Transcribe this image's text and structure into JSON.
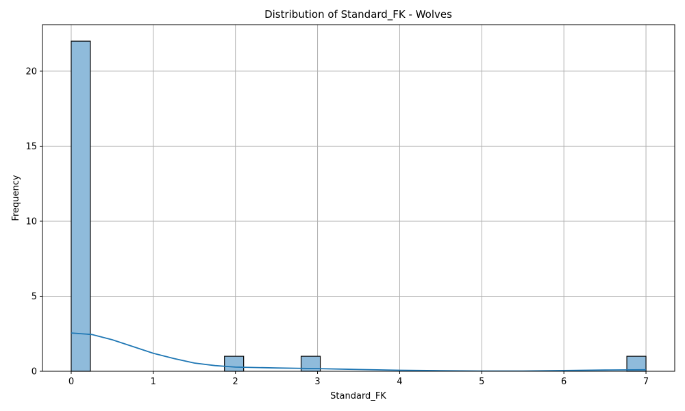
{
  "chart_data": {
    "type": "histogram",
    "title": "Distribution of Standard_FK - Wolves",
    "xlabel": "Standard_FK",
    "ylabel": "Frequency",
    "xlim": [
      -0.35,
      7.35
    ],
    "ylim": [
      0,
      23.1
    ],
    "xticks": [
      0,
      1,
      2,
      3,
      4,
      5,
      6,
      7
    ],
    "yticks": [
      0,
      5,
      10,
      15,
      20
    ],
    "grid": true,
    "bin_width": 0.2333,
    "bars": [
      {
        "x0": 0.0,
        "x1": 0.2333,
        "count": 22
      },
      {
        "x0": 1.8667,
        "x1": 2.1,
        "count": 1
      },
      {
        "x0": 2.8,
        "x1": 3.0333,
        "count": 1
      },
      {
        "x0": 6.7667,
        "x1": 7.0,
        "count": 1
      }
    ],
    "kde": {
      "x": [
        0,
        0.25,
        0.5,
        0.75,
        1.0,
        1.25,
        1.5,
        1.75,
        2.0,
        2.5,
        3.0,
        3.5,
        4.0,
        4.5,
        5.0,
        5.5,
        6.0,
        6.5,
        7.0
      ],
      "y": [
        2.55,
        2.45,
        2.1,
        1.65,
        1.2,
        0.85,
        0.55,
        0.38,
        0.28,
        0.22,
        0.18,
        0.12,
        0.07,
        0.04,
        0.02,
        0.02,
        0.05,
        0.08,
        0.1
      ]
    },
    "colors": {
      "bar_fill": "#8fbbdb",
      "bar_edge": "#000000",
      "kde_line": "#1f77b4",
      "grid": "#b0b0b0"
    }
  }
}
